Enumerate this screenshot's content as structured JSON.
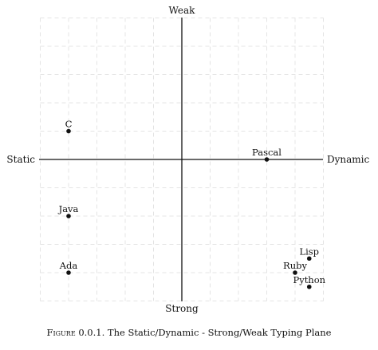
{
  "chart_data": {
    "type": "scatter",
    "title": "",
    "axes": {
      "left": "Static",
      "right": "Dynamic",
      "top": "Weak",
      "bottom": "Strong"
    },
    "xlim": [
      -5,
      5
    ],
    "ylim": [
      -5,
      5
    ],
    "grid": true,
    "points": [
      {
        "label": "C",
        "x": -4,
        "y": 1,
        "label_pos": "above"
      },
      {
        "label": "Pascal",
        "x": 3,
        "y": 0,
        "label_pos": "above"
      },
      {
        "label": "Java",
        "x": -4,
        "y": -2,
        "label_pos": "above"
      },
      {
        "label": "Ada",
        "x": -4,
        "y": -4,
        "label_pos": "above"
      },
      {
        "label": "Lisp",
        "x": 4.5,
        "y": -3.5,
        "label_pos": "above"
      },
      {
        "label": "Ruby",
        "x": 4,
        "y": -4,
        "label_pos": "above"
      },
      {
        "label": "Python",
        "x": 4.5,
        "y": -4.5,
        "label_pos": "above"
      }
    ]
  },
  "caption": {
    "prefix": "Figure 0.0.1.",
    "text": "The Static/Dynamic - Strong/Weak Typing Plane"
  },
  "colors": {
    "axis": "#111111",
    "grid": "#e4e4e4",
    "point": "#111111"
  }
}
